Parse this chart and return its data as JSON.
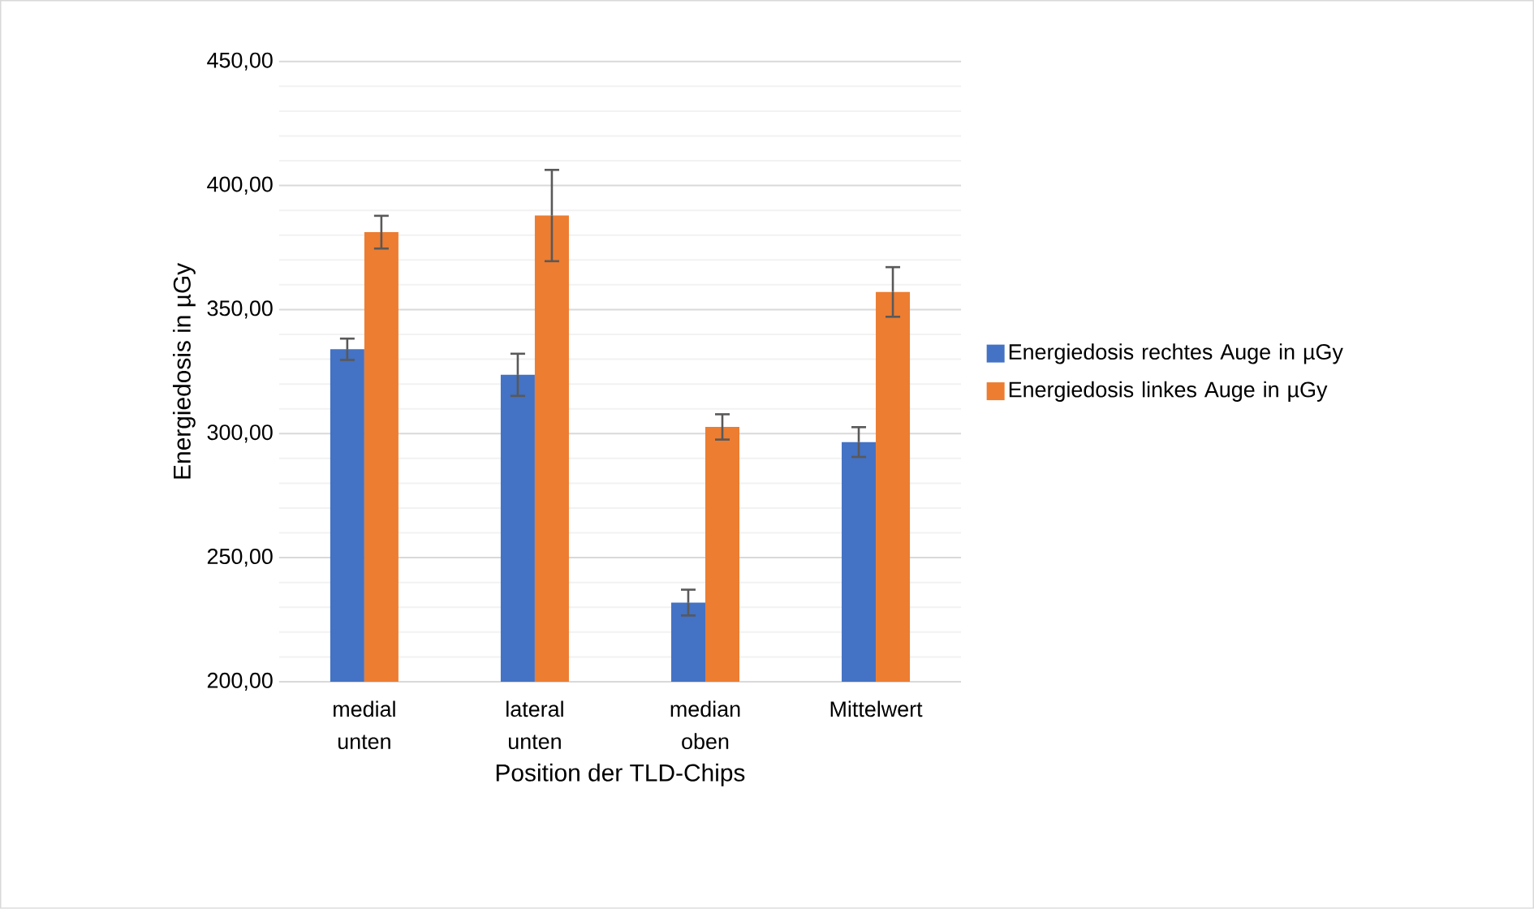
{
  "chart_data": {
    "type": "bar",
    "xlabel": "Position der TLD-Chips",
    "ylabel": "Energiedosis in µGy",
    "categories": [
      "medial unten",
      "lateral unten",
      "median oben",
      "Mittelwert"
    ],
    "series": [
      {
        "name": "Energiedosis rechtes Auge in µGy",
        "color": "#4472c4",
        "values": [
          334.0,
          323.7,
          231.9,
          296.6
        ],
        "errors": [
          4.3,
          8.5,
          5.2,
          6.0
        ]
      },
      {
        "name": "Energiedosis linkes Auge in µGy",
        "color": "#ed7d31",
        "values": [
          381.2,
          387.9,
          302.7,
          357.1
        ],
        "errors": [
          6.6,
          18.4,
          5.1,
          10.0
        ]
      }
    ],
    "ylim": [
      200,
      450
    ],
    "yticks": [
      {
        "value": 200,
        "label": "200,00"
      },
      {
        "value": 250,
        "label": "250,00"
      },
      {
        "value": 300,
        "label": "300,00"
      },
      {
        "value": 350,
        "label": "350,00"
      },
      {
        "value": 400,
        "label": "400,00"
      },
      {
        "value": 450,
        "label": "450,00"
      }
    ],
    "grid": "y",
    "legend": "right"
  }
}
